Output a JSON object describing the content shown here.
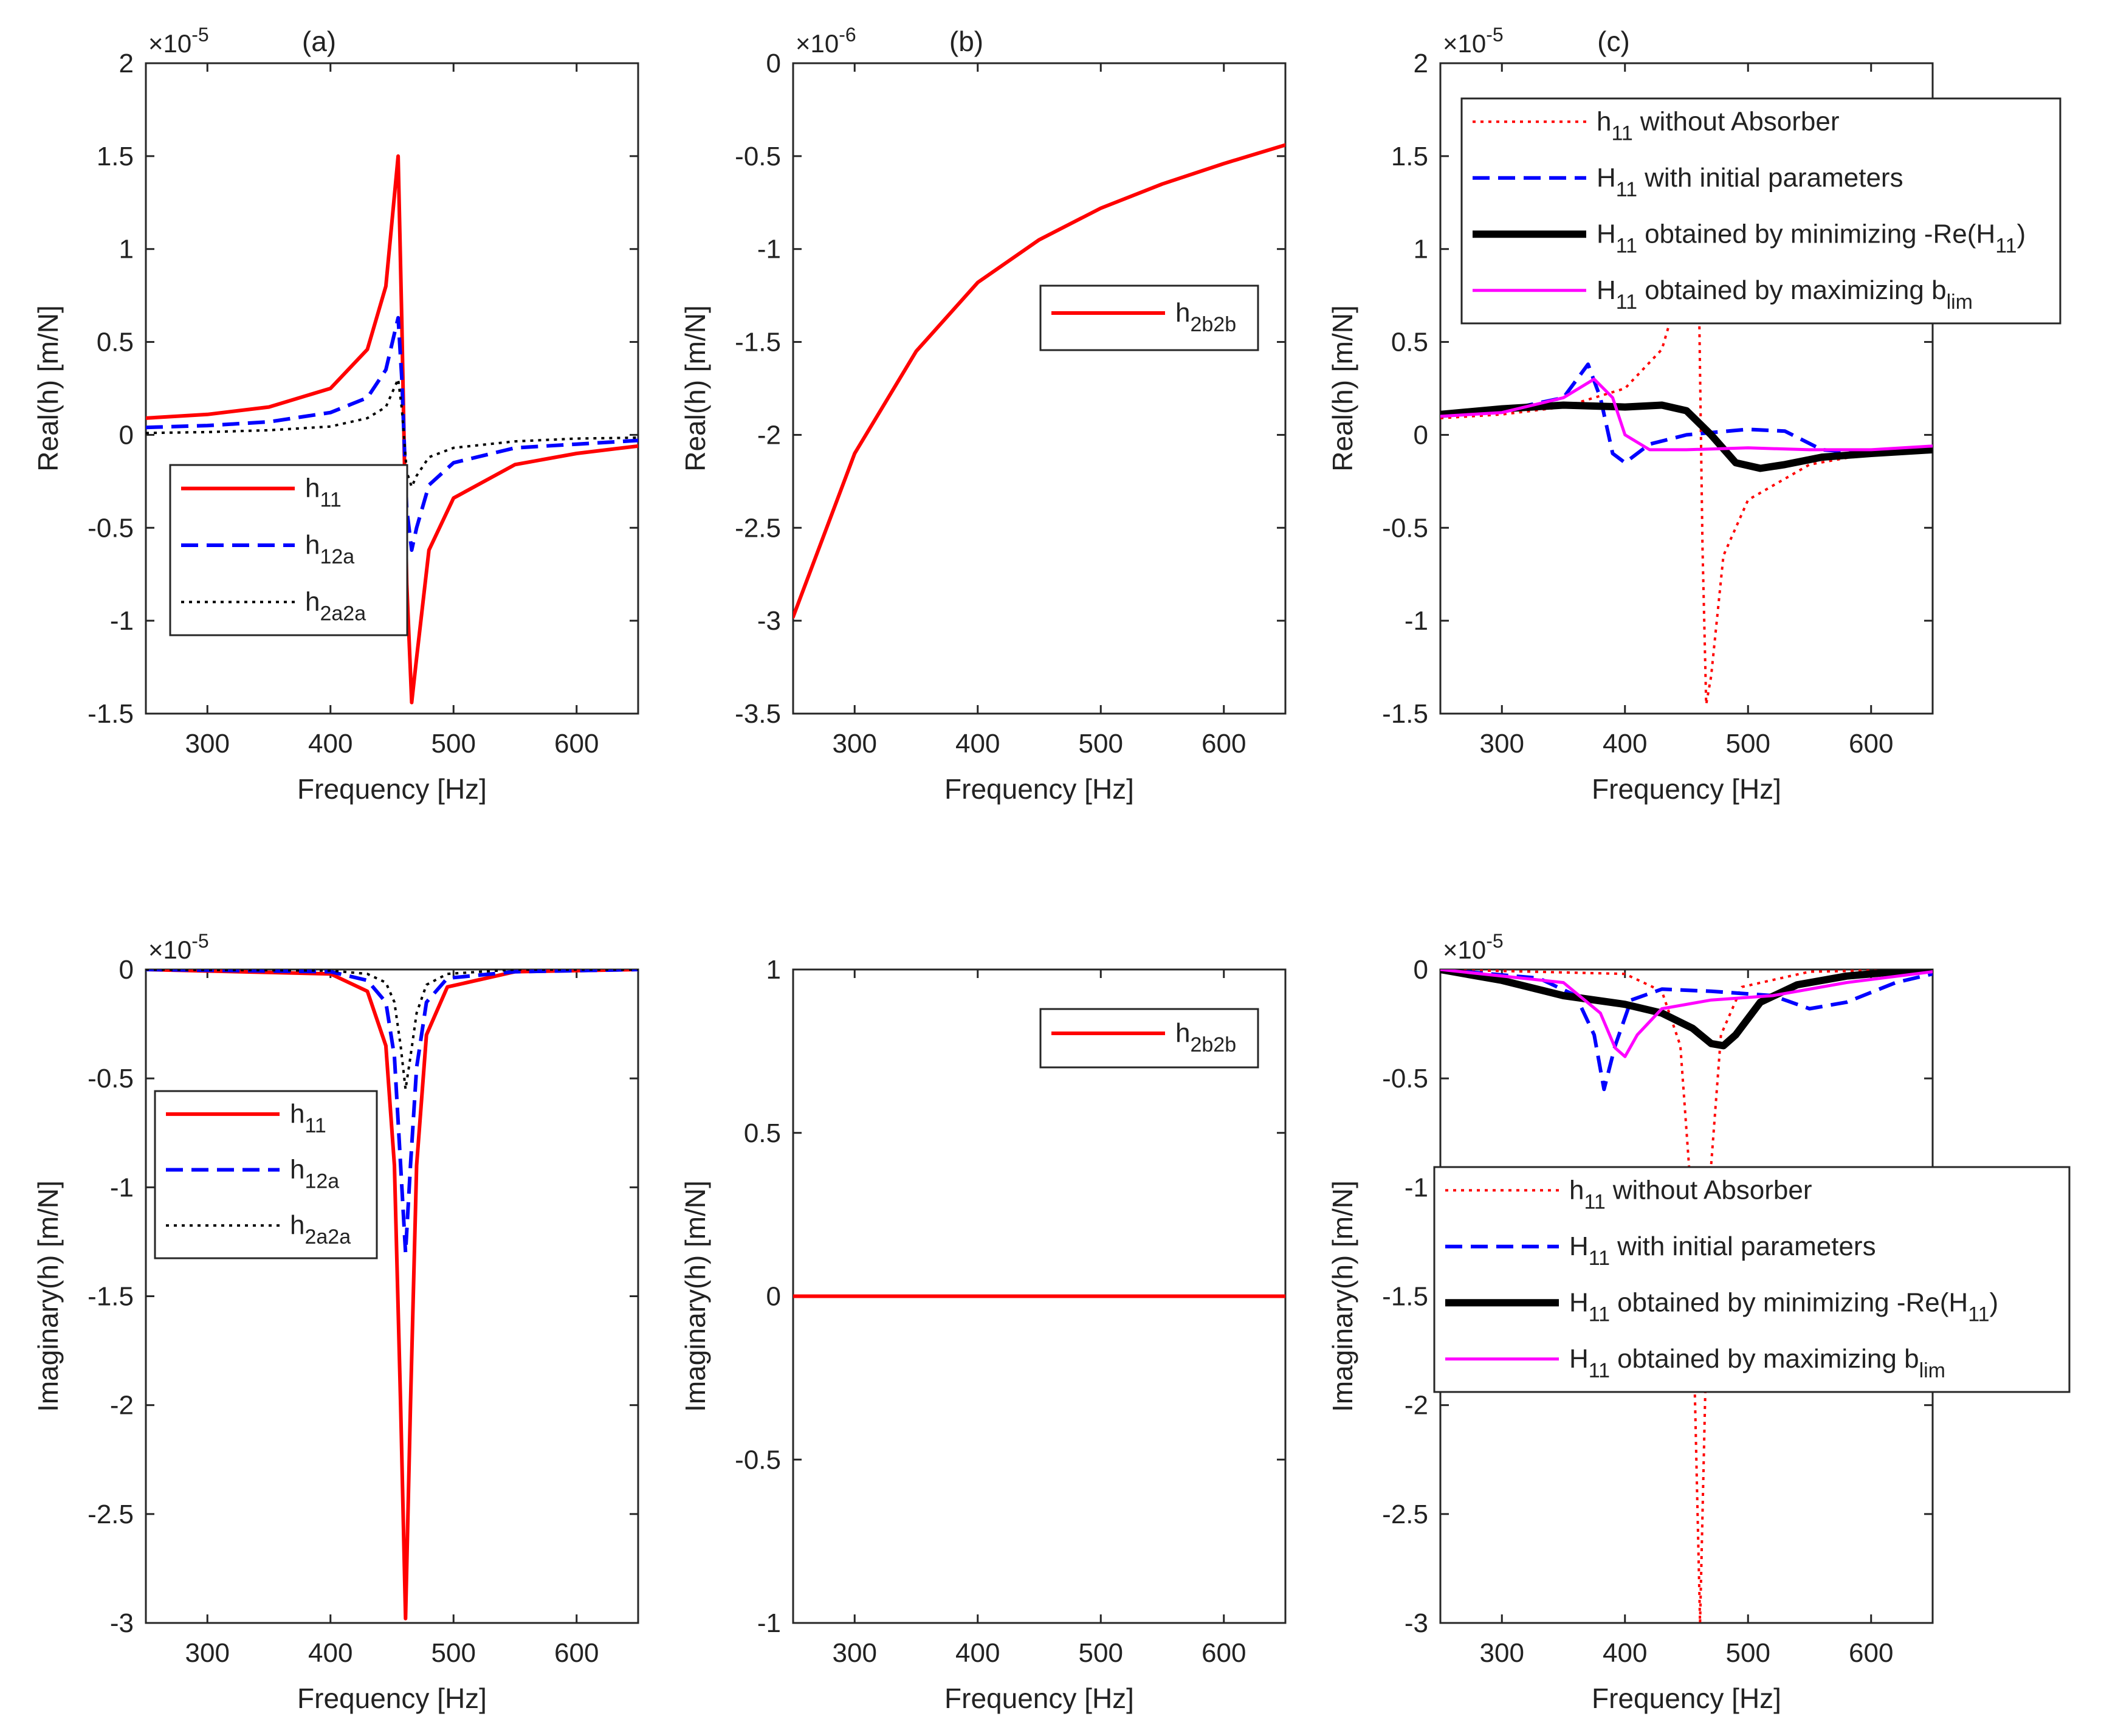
{
  "figure": {
    "panels": [
      {
        "id": "a-top",
        "panel_label": "(a)",
        "exponent": "×10",
        "exponent_power": "-5",
        "legend_position": "lower-left",
        "series_legend": [
          {
            "base": "h",
            "sub": "11",
            "rest": "",
            "sub2": ""
          },
          {
            "base": "h",
            "sub": "12a",
            "rest": "",
            "sub2": ""
          },
          {
            "base": "h",
            "sub": "2a2a",
            "rest": "",
            "sub2": ""
          }
        ]
      },
      {
        "id": "b-top",
        "panel_label": "(b)",
        "exponent": "×10",
        "exponent_power": "-6",
        "legend_position": "top-right",
        "series_legend": [
          {
            "base": "h",
            "sub": "2b2b",
            "rest": "",
            "sub2": ""
          }
        ]
      },
      {
        "id": "c-top",
        "panel_label": "(c)",
        "exponent": "×10",
        "exponent_power": "-5",
        "legend_position": "top",
        "series_legend": [
          {
            "base": "h",
            "sub": "11",
            "rest": "without Absorber",
            "sub2": ""
          },
          {
            "base": "H",
            "sub": "11",
            "rest": "with initial parameters",
            "sub2": ""
          },
          {
            "base": "H",
            "sub": "11",
            "rest": "obtained by minimizing -Re(H",
            "sub2": "11",
            "close": ")"
          },
          {
            "base": "H",
            "sub": "11",
            "rest": "obtained by maximizing b",
            "sub2": "lim"
          }
        ]
      },
      {
        "id": "a-bottom",
        "panel_label": "",
        "exponent": "×10",
        "exponent_power": "-5",
        "legend_position": "left",
        "series_legend": [
          {
            "base": "h",
            "sub": "11",
            "rest": "",
            "sub2": ""
          },
          {
            "base": "h",
            "sub": "12a",
            "rest": "",
            "sub2": ""
          },
          {
            "base": "h",
            "sub": "2a2a",
            "rest": "",
            "sub2": ""
          }
        ]
      },
      {
        "id": "b-bottom",
        "panel_label": "",
        "exponent": "",
        "exponent_power": "",
        "legend_position": "top-right",
        "series_legend": [
          {
            "base": "h",
            "sub": "2b2b",
            "rest": "",
            "sub2": ""
          }
        ]
      },
      {
        "id": "c-bottom",
        "panel_label": "",
        "exponent": "×10",
        "exponent_power": "-5",
        "legend_position": "middle",
        "series_legend": [
          {
            "base": "h",
            "sub": "11",
            "rest": "without Absorber",
            "sub2": ""
          },
          {
            "base": "H",
            "sub": "11",
            "rest": "with initial parameters",
            "sub2": ""
          },
          {
            "base": "H",
            "sub": "11",
            "rest": "obtained by minimizing -Re(H",
            "sub2": "11",
            "close": ")"
          },
          {
            "base": "H",
            "sub": "11",
            "rest": "obtained by maximizing b",
            "sub2": "lim"
          }
        ]
      }
    ]
  },
  "chart_data": [
    {
      "type": "line",
      "panel": "(a) top",
      "xlabel": "Frequency [Hz]",
      "ylabel": "Real(h) [m/N]",
      "xlim": [
        250,
        650
      ],
      "ylim": [
        -1.5,
        2
      ],
      "xticks": [
        "300",
        "400",
        "500",
        "600"
      ],
      "yticks": [
        "-1.5",
        "-1",
        "-0.5",
        "0",
        "0.5",
        "1",
        "1.5",
        "2"
      ],
      "x": [
        250,
        300,
        350,
        400,
        430,
        445,
        455,
        458,
        462,
        466,
        470,
        480,
        500,
        550,
        600,
        650
      ],
      "series": [
        {
          "name": "h11",
          "style": "solid-red",
          "values": [
            0.09,
            0.11,
            0.15,
            0.25,
            0.46,
            0.8,
            1.5,
            0.6,
            -0.8,
            -1.44,
            -1.2,
            -0.62,
            -0.34,
            -0.16,
            -0.1,
            -0.06
          ]
        },
        {
          "name": "h12a",
          "style": "dash-blue",
          "values": [
            0.04,
            0.05,
            0.07,
            0.12,
            0.2,
            0.35,
            0.63,
            0.3,
            -0.4,
            -0.62,
            -0.5,
            -0.27,
            -0.15,
            -0.07,
            -0.05,
            -0.03
          ]
        },
        {
          "name": "h2a2a",
          "style": "dot-black",
          "values": [
            0.01,
            0.015,
            0.025,
            0.045,
            0.09,
            0.15,
            0.3,
            0.14,
            -0.2,
            -0.28,
            -0.22,
            -0.12,
            -0.07,
            -0.035,
            -0.02,
            -0.015
          ]
        }
      ]
    },
    {
      "type": "line",
      "panel": "(b) top",
      "xlabel": "Frequency [Hz]",
      "ylabel": "Real(h) [m/N]",
      "xlim": [
        250,
        650
      ],
      "ylim": [
        -3.5,
        0
      ],
      "xticks": [
        "300",
        "400",
        "500",
        "600"
      ],
      "yticks": [
        "-3.5",
        "-3",
        "-2.5",
        "-2",
        "-1.5",
        "-1",
        "-0.5",
        "0"
      ],
      "x": [
        250,
        300,
        350,
        400,
        450,
        500,
        550,
        600,
        650
      ],
      "series": [
        {
          "name": "h2b2b",
          "style": "solid-red",
          "values": [
            -2.98,
            -2.1,
            -1.55,
            -1.18,
            -0.95,
            -0.78,
            -0.65,
            -0.54,
            -0.44
          ]
        }
      ]
    },
    {
      "type": "line",
      "panel": "(c) top",
      "xlabel": "Frequency [Hz]",
      "ylabel": "Real(h) [m/N]",
      "xlim": [
        250,
        650
      ],
      "ylim": [
        -1.5,
        2
      ],
      "xticks": [
        "300",
        "400",
        "500",
        "600"
      ],
      "yticks": [
        "-1.5",
        "-1",
        "-0.5",
        "0",
        "0.5",
        "1",
        "1.5",
        "2"
      ],
      "series": [
        {
          "name": "h11 without Absorber",
          "style": "dot-red",
          "x": [
            250,
            300,
            350,
            400,
            430,
            445,
            455,
            460,
            463,
            466,
            470,
            480,
            500,
            550,
            600,
            650
          ],
          "values": [
            0.09,
            0.11,
            0.15,
            0.25,
            0.46,
            0.8,
            1.5,
            0.8,
            -0.6,
            -1.45,
            -1.3,
            -0.65,
            -0.35,
            -0.16,
            -0.1,
            -0.06
          ]
        },
        {
          "name": "H11 with initial parameters",
          "style": "dash-blue",
          "x": [
            250,
            300,
            350,
            370,
            380,
            390,
            400,
            420,
            450,
            500,
            530,
            560,
            600,
            650
          ],
          "values": [
            0.11,
            0.13,
            0.2,
            0.38,
            0.2,
            -0.1,
            -0.15,
            -0.05,
            0.0,
            0.03,
            0.02,
            -0.08,
            -0.1,
            -0.09
          ]
        },
        {
          "name": "H11 obtained by minimizing -Re(H11)",
          "style": "thick-black",
          "x": [
            250,
            300,
            350,
            400,
            430,
            450,
            470,
            490,
            510,
            530,
            560,
            600,
            650
          ],
          "values": [
            0.11,
            0.14,
            0.16,
            0.15,
            0.16,
            0.13,
            0.0,
            -0.15,
            -0.18,
            -0.16,
            -0.12,
            -0.1,
            -0.08
          ]
        },
        {
          "name": "H11 obtained by maximizing blim",
          "style": "solid-magenta",
          "x": [
            250,
            300,
            350,
            375,
            390,
            400,
            420,
            450,
            500,
            550,
            600,
            650
          ],
          "values": [
            0.1,
            0.12,
            0.2,
            0.3,
            0.2,
            0.0,
            -0.08,
            -0.08,
            -0.07,
            -0.08,
            -0.08,
            -0.06
          ]
        }
      ]
    },
    {
      "type": "line",
      "panel": "(a) bottom",
      "xlabel": "Frequency [Hz]",
      "ylabel": "Imaginary(h) [m/N]",
      "xlim": [
        250,
        650
      ],
      "ylim": [
        -3,
        0
      ],
      "xticks": [
        "300",
        "400",
        "500",
        "600"
      ],
      "yticks": [
        "-3",
        "-2.5",
        "-2",
        "-1.5",
        "-1",
        "-0.5",
        "0"
      ],
      "x": [
        250,
        400,
        430,
        445,
        452,
        457,
        461,
        465,
        470,
        478,
        495,
        550,
        650
      ],
      "series": [
        {
          "name": "h11",
          "style": "solid-red",
          "values": [
            0.0,
            -0.02,
            -0.1,
            -0.35,
            -0.9,
            -2.0,
            -2.98,
            -2.0,
            -0.9,
            -0.3,
            -0.08,
            -0.01,
            0.0
          ]
        },
        {
          "name": "h12a",
          "style": "dash-blue",
          "values": [
            0.0,
            -0.01,
            -0.05,
            -0.15,
            -0.4,
            -0.9,
            -1.3,
            -0.9,
            -0.45,
            -0.15,
            -0.04,
            -0.01,
            0.0
          ]
        },
        {
          "name": "h2a2a",
          "style": "dot-black",
          "values": [
            0.0,
            -0.005,
            -0.02,
            -0.06,
            -0.15,
            -0.35,
            -0.55,
            -0.4,
            -0.2,
            -0.07,
            -0.02,
            0.0,
            0.0
          ]
        }
      ]
    },
    {
      "type": "line",
      "panel": "(b) bottom",
      "xlabel": "Frequency [Hz]",
      "ylabel": "Imaginary(h) [m/N]",
      "xlim": [
        250,
        650
      ],
      "ylim": [
        -1,
        1
      ],
      "xticks": [
        "300",
        "400",
        "500",
        "600"
      ],
      "yticks": [
        "-1",
        "-0.5",
        "0",
        "0.5",
        "1"
      ],
      "x": [
        250,
        650
      ],
      "series": [
        {
          "name": "h2b2b",
          "style": "solid-red",
          "values": [
            0,
            0
          ]
        }
      ]
    },
    {
      "type": "line",
      "panel": "(c) bottom",
      "xlabel": "Frequency [Hz]",
      "ylabel": "Imaginary(h) [m/N]",
      "xlim": [
        250,
        650
      ],
      "ylim": [
        -3,
        0
      ],
      "xticks": [
        "300",
        "400",
        "500",
        "600"
      ],
      "yticks": [
        "-3",
        "-2.5",
        "-2",
        "-1.5",
        "-1",
        "-0.5",
        "0"
      ],
      "series": [
        {
          "name": "h11 without Absorber",
          "style": "dot-red",
          "x": [
            250,
            400,
            430,
            445,
            452,
            457,
            461,
            465,
            470,
            478,
            495,
            550,
            650
          ],
          "values": [
            0.0,
            -0.02,
            -0.1,
            -0.35,
            -0.9,
            -2.0,
            -3.0,
            -2.0,
            -0.9,
            -0.3,
            -0.08,
            -0.01,
            0.0
          ]
        },
        {
          "name": "H11 with initial parameters",
          "style": "dash-blue",
          "x": [
            250,
            330,
            360,
            375,
            383,
            392,
            405,
            430,
            470,
            520,
            550,
            580,
            620,
            650
          ],
          "values": [
            0.0,
            -0.04,
            -0.12,
            -0.3,
            -0.55,
            -0.35,
            -0.14,
            -0.09,
            -0.1,
            -0.12,
            -0.18,
            -0.15,
            -0.06,
            -0.02
          ]
        },
        {
          "name": "H11 obtained by minimizing -Re(H11)",
          "style": "thick-black",
          "x": [
            250,
            300,
            350,
            400,
            430,
            455,
            470,
            480,
            490,
            510,
            540,
            580,
            620,
            650
          ],
          "values": [
            0.0,
            -0.05,
            -0.12,
            -0.16,
            -0.2,
            -0.27,
            -0.34,
            -0.35,
            -0.3,
            -0.15,
            -0.07,
            -0.03,
            -0.01,
            0.0
          ]
        },
        {
          "name": "H11 obtained by maximizing blim",
          "style": "solid-magenta",
          "x": [
            250,
            350,
            380,
            392,
            400,
            410,
            430,
            470,
            520,
            580,
            650
          ],
          "values": [
            0.0,
            -0.06,
            -0.2,
            -0.36,
            -0.4,
            -0.3,
            -0.18,
            -0.14,
            -0.12,
            -0.06,
            -0.01
          ]
        }
      ]
    }
  ]
}
